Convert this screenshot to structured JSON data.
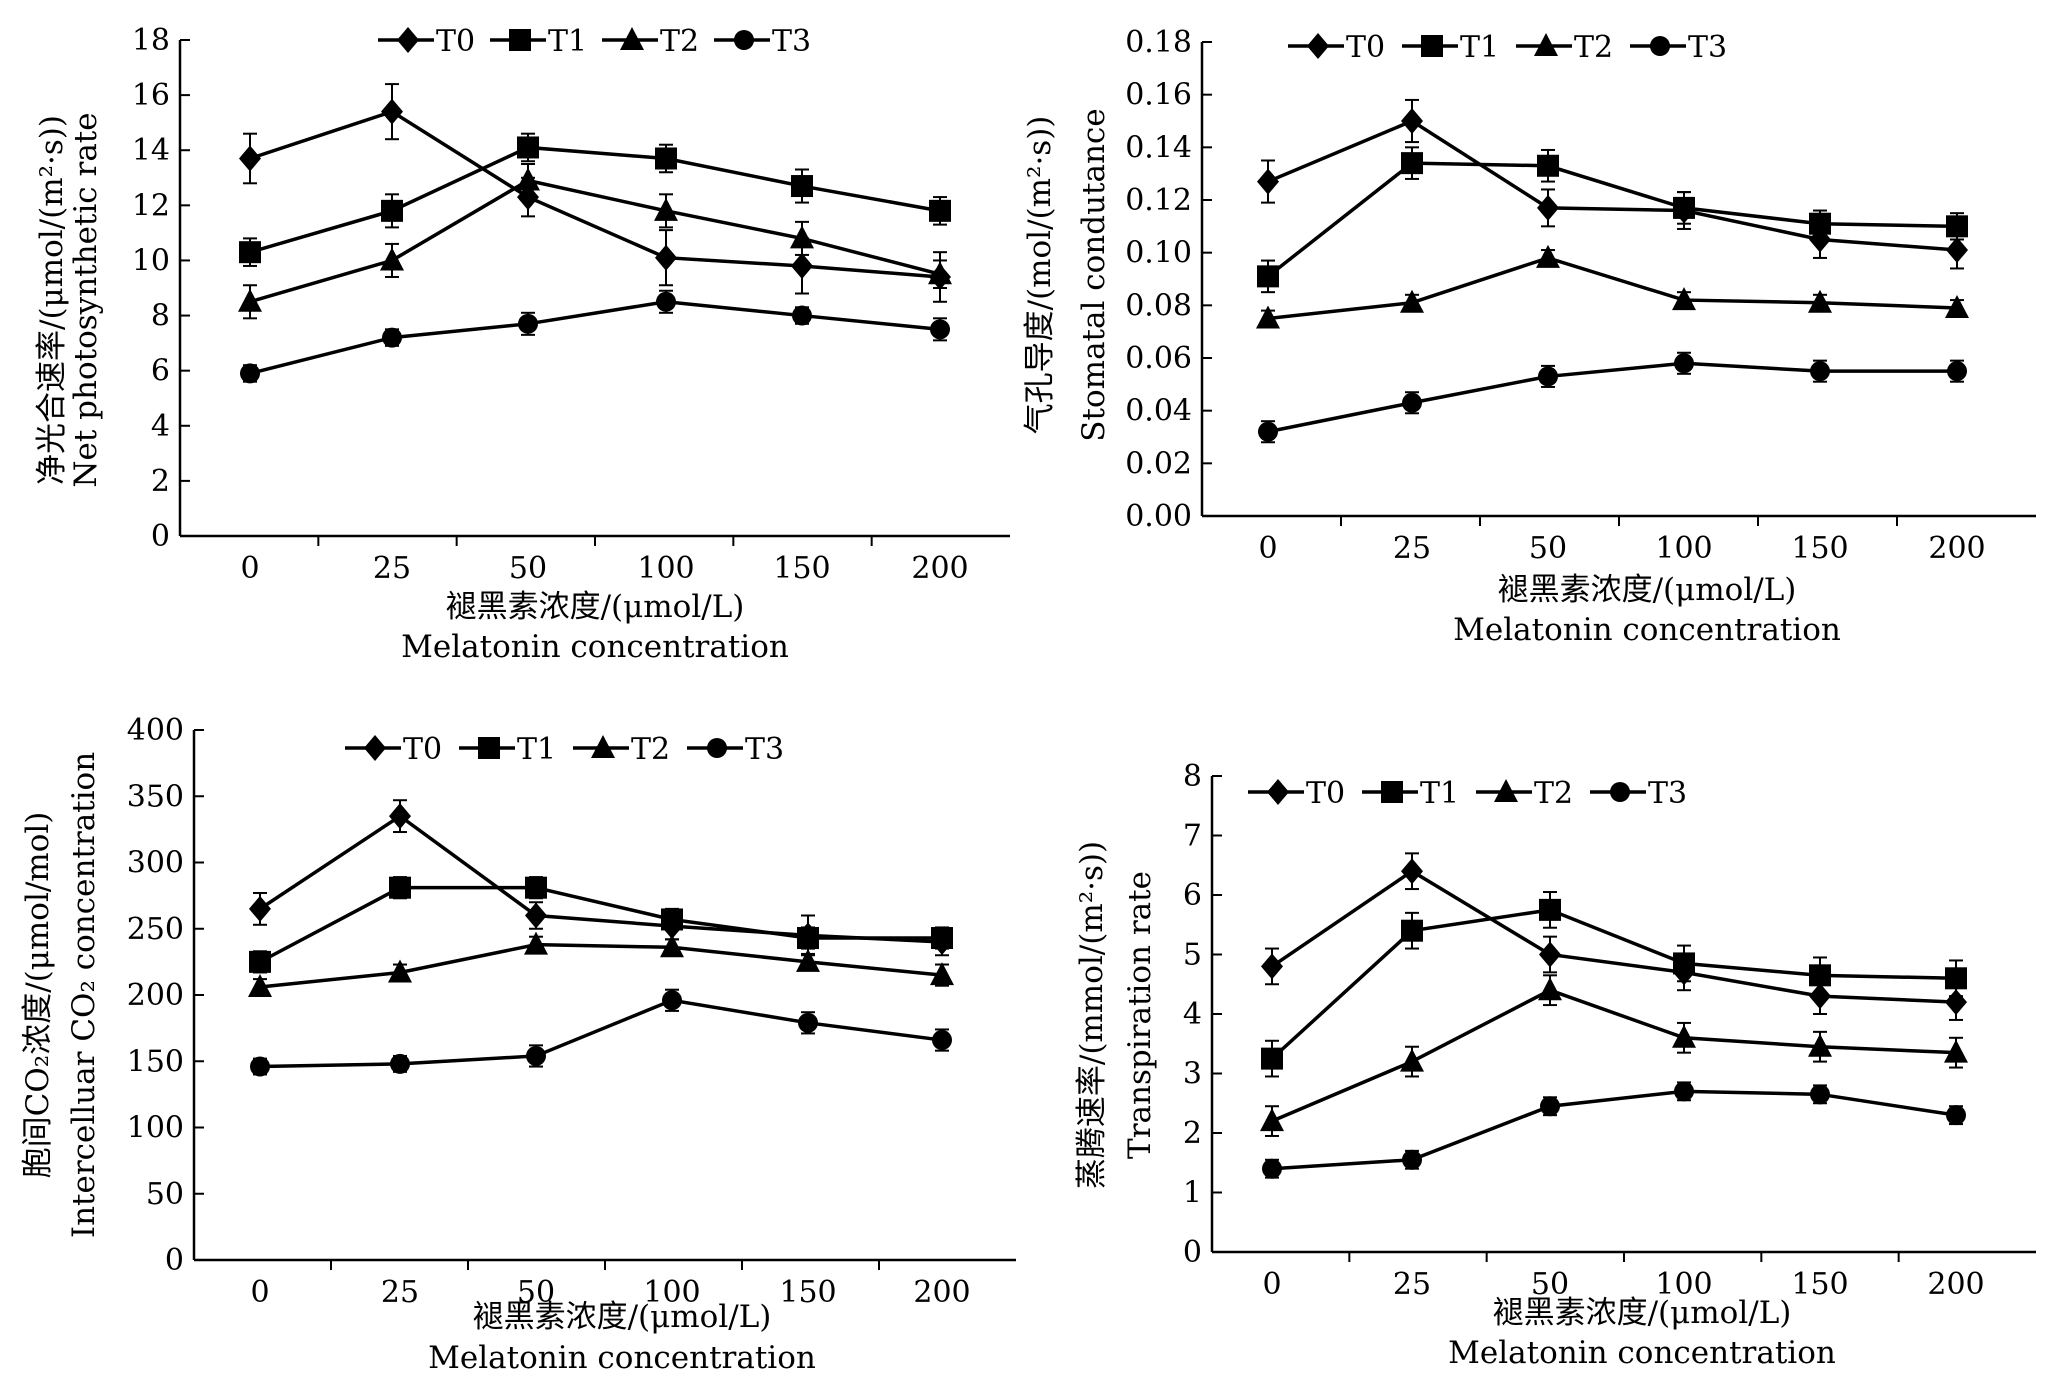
{
  "chart_data": [
    {
      "type": "line",
      "xlabel": [
        "褪黑素浓度/(μmol/L)",
        "Melatonin concentration"
      ],
      "ylabel": [
        "净光合速率/(μmol/(m²·s))",
        "Net photosynthetic rate"
      ],
      "categories": [
        "0",
        "25",
        "50",
        "100",
        "150",
        "200"
      ],
      "ylim": [
        0,
        18
      ],
      "yticks": [
        "0",
        "2",
        "4",
        "6",
        "8",
        "10",
        "12",
        "14",
        "16",
        "18"
      ],
      "legend": "top",
      "series": [
        {
          "name": "T0",
          "marker": "diamond",
          "values": [
            13.7,
            15.4,
            12.3,
            10.1,
            9.8,
            9.4
          ],
          "errors": [
            0.9,
            1.0,
            0.7,
            1.0,
            1.0,
            0.9
          ]
        },
        {
          "name": "T1",
          "marker": "square",
          "values": [
            10.3,
            11.8,
            14.1,
            13.7,
            12.7,
            11.8
          ],
          "errors": [
            0.5,
            0.6,
            0.5,
            0.5,
            0.6,
            0.5
          ]
        },
        {
          "name": "T2",
          "marker": "triangle",
          "values": [
            8.5,
            10.0,
            12.9,
            11.8,
            10.8,
            9.5
          ],
          "errors": [
            0.6,
            0.6,
            0.6,
            0.6,
            0.6,
            0.5
          ]
        },
        {
          "name": "T3",
          "marker": "circle",
          "values": [
            5.9,
            7.2,
            7.7,
            8.5,
            8.0,
            7.5
          ],
          "errors": [
            0.3,
            0.3,
            0.4,
            0.4,
            0.3,
            0.4
          ]
        }
      ]
    },
    {
      "type": "line",
      "xlabel": [
        "褪黑素浓度/(μmol/L)",
        "Melatonin concentration"
      ],
      "ylabel": [
        "气孔导度/(mol/(m²·s))",
        "Stomatal condutance"
      ],
      "categories": [
        "0",
        "25",
        "50",
        "100",
        "150",
        "200"
      ],
      "ylim": [
        0,
        0.18
      ],
      "yticks": [
        "0.00",
        "0.02",
        "0.04",
        "0.06",
        "0.08",
        "0.10",
        "0.12",
        "0.14",
        "0.16",
        "0.18"
      ],
      "legend": "top",
      "series": [
        {
          "name": "T0",
          "marker": "diamond",
          "values": [
            0.127,
            0.15,
            0.117,
            0.116,
            0.105,
            0.101
          ],
          "errors": [
            0.008,
            0.008,
            0.007,
            0.007,
            0.007,
            0.007
          ]
        },
        {
          "name": "T1",
          "marker": "square",
          "values": [
            0.091,
            0.134,
            0.133,
            0.117,
            0.111,
            0.11
          ],
          "errors": [
            0.006,
            0.006,
            0.006,
            0.006,
            0.005,
            0.005
          ]
        },
        {
          "name": "T2",
          "marker": "triangle",
          "values": [
            0.075,
            0.081,
            0.098,
            0.082,
            0.081,
            0.079
          ],
          "errors": [
            0.003,
            0.003,
            0.003,
            0.003,
            0.003,
            0.003
          ]
        },
        {
          "name": "T3",
          "marker": "circle",
          "values": [
            0.032,
            0.043,
            0.053,
            0.058,
            0.055,
            0.055
          ],
          "errors": [
            0.004,
            0.004,
            0.004,
            0.004,
            0.004,
            0.004
          ]
        }
      ]
    },
    {
      "type": "line",
      "xlabel": [
        "褪黑素浓度/(μmol/L)",
        "Melatonin concentration"
      ],
      "ylabel": [
        "胞间CO₂浓度/(μmol/mol)",
        "Intercelluar CO₂ concentration"
      ],
      "categories": [
        "0",
        "25",
        "50",
        "100",
        "150",
        "200"
      ],
      "ylim": [
        0,
        400
      ],
      "yticks": [
        "0",
        "50",
        "100",
        "150",
        "200",
        "250",
        "300",
        "350",
        "400"
      ],
      "legend": "top",
      "series": [
        {
          "name": "T0",
          "marker": "diamond",
          "values": [
            265,
            335,
            260,
            252,
            245,
            240
          ],
          "errors": [
            12,
            12,
            10,
            10,
            15,
            10
          ]
        },
        {
          "name": "T1",
          "marker": "square",
          "values": [
            225,
            281,
            281,
            257,
            243,
            243
          ],
          "errors": [
            8,
            8,
            8,
            8,
            8,
            8
          ]
        },
        {
          "name": "T2",
          "marker": "triangle",
          "values": [
            206,
            217,
            238,
            236,
            225,
            215
          ],
          "errors": [
            6,
            6,
            6,
            6,
            6,
            8
          ]
        },
        {
          "name": "T3",
          "marker": "circle",
          "values": [
            146,
            148,
            154,
            196,
            179,
            166
          ],
          "errors": [
            6,
            6,
            8,
            8,
            8,
            8
          ]
        }
      ]
    },
    {
      "type": "line",
      "xlabel": [
        "褪黑素浓度/(μmol/L)",
        "Melatonin concentration"
      ],
      "ylabel": [
        "蒸腾速率/(mmol/(m²·s))",
        "Transpiration rate"
      ],
      "categories": [
        "0",
        "25",
        "50",
        "100",
        "150",
        "200"
      ],
      "ylim": [
        0,
        8
      ],
      "yticks": [
        "0",
        "1",
        "2",
        "3",
        "4",
        "5",
        "6",
        "7",
        "8"
      ],
      "legend": "top",
      "series": [
        {
          "name": "T0",
          "marker": "diamond",
          "values": [
            4.8,
            6.4,
            5.0,
            4.7,
            4.3,
            4.2
          ],
          "errors": [
            0.3,
            0.3,
            0.3,
            0.3,
            0.3,
            0.3
          ]
        },
        {
          "name": "T1",
          "marker": "square",
          "values": [
            3.25,
            5.4,
            5.75,
            4.85,
            4.65,
            4.6
          ],
          "errors": [
            0.3,
            0.3,
            0.3,
            0.3,
            0.3,
            0.3
          ]
        },
        {
          "name": "T2",
          "marker": "triangle",
          "values": [
            2.2,
            3.2,
            4.4,
            3.6,
            3.45,
            3.35
          ],
          "errors": [
            0.25,
            0.25,
            0.25,
            0.25,
            0.25,
            0.25
          ]
        },
        {
          "name": "T3",
          "marker": "circle",
          "values": [
            1.4,
            1.55,
            2.45,
            2.7,
            2.65,
            2.3
          ],
          "errors": [
            0.15,
            0.15,
            0.15,
            0.15,
            0.15,
            0.15
          ]
        }
      ]
    }
  ]
}
